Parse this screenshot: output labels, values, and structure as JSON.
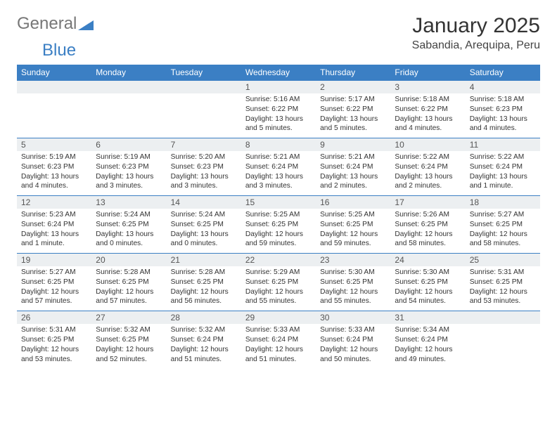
{
  "logo": {
    "text1": "General",
    "text2": "Blue",
    "accent_color": "#3b7fc4"
  },
  "title": "January 2025",
  "location": "Sabandia, Arequipa, Peru",
  "colors": {
    "header_bg": "#3b7fc4",
    "header_text": "#ffffff",
    "daynum_bg": "#eceff1",
    "border": "#3b7fc4",
    "text": "#333333"
  },
  "weekday_labels": [
    "Sunday",
    "Monday",
    "Tuesday",
    "Wednesday",
    "Thursday",
    "Friday",
    "Saturday"
  ],
  "weeks": [
    [
      null,
      null,
      null,
      {
        "n": "1",
        "sunrise": "5:16 AM",
        "sunset": "6:22 PM",
        "daylight": "13 hours and 5 minutes."
      },
      {
        "n": "2",
        "sunrise": "5:17 AM",
        "sunset": "6:22 PM",
        "daylight": "13 hours and 5 minutes."
      },
      {
        "n": "3",
        "sunrise": "5:18 AM",
        "sunset": "6:22 PM",
        "daylight": "13 hours and 4 minutes."
      },
      {
        "n": "4",
        "sunrise": "5:18 AM",
        "sunset": "6:23 PM",
        "daylight": "13 hours and 4 minutes."
      }
    ],
    [
      {
        "n": "5",
        "sunrise": "5:19 AM",
        "sunset": "6:23 PM",
        "daylight": "13 hours and 4 minutes."
      },
      {
        "n": "6",
        "sunrise": "5:19 AM",
        "sunset": "6:23 PM",
        "daylight": "13 hours and 3 minutes."
      },
      {
        "n": "7",
        "sunrise": "5:20 AM",
        "sunset": "6:23 PM",
        "daylight": "13 hours and 3 minutes."
      },
      {
        "n": "8",
        "sunrise": "5:21 AM",
        "sunset": "6:24 PM",
        "daylight": "13 hours and 3 minutes."
      },
      {
        "n": "9",
        "sunrise": "5:21 AM",
        "sunset": "6:24 PM",
        "daylight": "13 hours and 2 minutes."
      },
      {
        "n": "10",
        "sunrise": "5:22 AM",
        "sunset": "6:24 PM",
        "daylight": "13 hours and 2 minutes."
      },
      {
        "n": "11",
        "sunrise": "5:22 AM",
        "sunset": "6:24 PM",
        "daylight": "13 hours and 1 minute."
      }
    ],
    [
      {
        "n": "12",
        "sunrise": "5:23 AM",
        "sunset": "6:24 PM",
        "daylight": "13 hours and 1 minute."
      },
      {
        "n": "13",
        "sunrise": "5:24 AM",
        "sunset": "6:25 PM",
        "daylight": "13 hours and 0 minutes."
      },
      {
        "n": "14",
        "sunrise": "5:24 AM",
        "sunset": "6:25 PM",
        "daylight": "13 hours and 0 minutes."
      },
      {
        "n": "15",
        "sunrise": "5:25 AM",
        "sunset": "6:25 PM",
        "daylight": "12 hours and 59 minutes."
      },
      {
        "n": "16",
        "sunrise": "5:25 AM",
        "sunset": "6:25 PM",
        "daylight": "12 hours and 59 minutes."
      },
      {
        "n": "17",
        "sunrise": "5:26 AM",
        "sunset": "6:25 PM",
        "daylight": "12 hours and 58 minutes."
      },
      {
        "n": "18",
        "sunrise": "5:27 AM",
        "sunset": "6:25 PM",
        "daylight": "12 hours and 58 minutes."
      }
    ],
    [
      {
        "n": "19",
        "sunrise": "5:27 AM",
        "sunset": "6:25 PM",
        "daylight": "12 hours and 57 minutes."
      },
      {
        "n": "20",
        "sunrise": "5:28 AM",
        "sunset": "6:25 PM",
        "daylight": "12 hours and 57 minutes."
      },
      {
        "n": "21",
        "sunrise": "5:28 AM",
        "sunset": "6:25 PM",
        "daylight": "12 hours and 56 minutes."
      },
      {
        "n": "22",
        "sunrise": "5:29 AM",
        "sunset": "6:25 PM",
        "daylight": "12 hours and 55 minutes."
      },
      {
        "n": "23",
        "sunrise": "5:30 AM",
        "sunset": "6:25 PM",
        "daylight": "12 hours and 55 minutes."
      },
      {
        "n": "24",
        "sunrise": "5:30 AM",
        "sunset": "6:25 PM",
        "daylight": "12 hours and 54 minutes."
      },
      {
        "n": "25",
        "sunrise": "5:31 AM",
        "sunset": "6:25 PM",
        "daylight": "12 hours and 53 minutes."
      }
    ],
    [
      {
        "n": "26",
        "sunrise": "5:31 AM",
        "sunset": "6:25 PM",
        "daylight": "12 hours and 53 minutes."
      },
      {
        "n": "27",
        "sunrise": "5:32 AM",
        "sunset": "6:25 PM",
        "daylight": "12 hours and 52 minutes."
      },
      {
        "n": "28",
        "sunrise": "5:32 AM",
        "sunset": "6:24 PM",
        "daylight": "12 hours and 51 minutes."
      },
      {
        "n": "29",
        "sunrise": "5:33 AM",
        "sunset": "6:24 PM",
        "daylight": "12 hours and 51 minutes."
      },
      {
        "n": "30",
        "sunrise": "5:33 AM",
        "sunset": "6:24 PM",
        "daylight": "12 hours and 50 minutes."
      },
      {
        "n": "31",
        "sunrise": "5:34 AM",
        "sunset": "6:24 PM",
        "daylight": "12 hours and 49 minutes."
      },
      null
    ]
  ],
  "labels": {
    "sunrise": "Sunrise:",
    "sunset": "Sunset:",
    "daylight": "Daylight:"
  }
}
